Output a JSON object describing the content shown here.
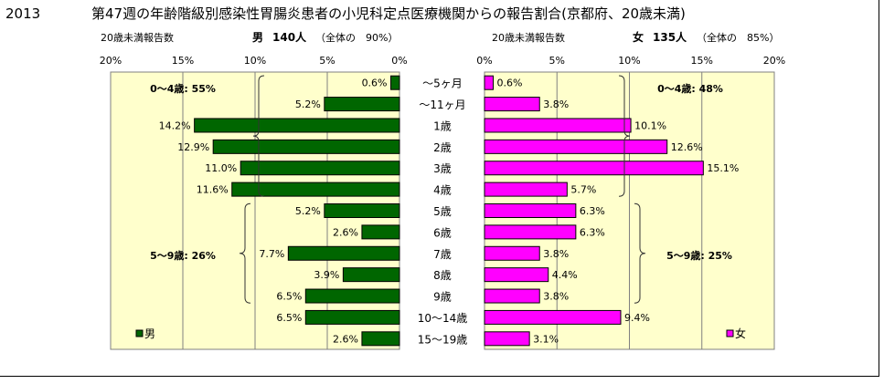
{
  "header": {
    "year": "2013",
    "title": "第47週の年齢階級別感染性胃腸炎患者の小児科定点医療機関からの報告割合(京都府、20歳未満)"
  },
  "colors": {
    "male": "#006600",
    "female": "#ff00ff",
    "plot_bg": "#ffffcc",
    "grid": "#808080"
  },
  "chart_data": [
    {
      "type": "bar",
      "orientation": "horizontal",
      "direction": "right-to-left",
      "subtitle_left": "20歳未満報告数",
      "subtitle_sex": "男",
      "subtitle_count": "140人",
      "subtitle_share": "（全体の　90%）",
      "xlim": [
        0,
        20
      ],
      "ticks": [
        "20%",
        "15%",
        "10%",
        "5%",
        "0%"
      ],
      "legend": "男",
      "legend_position": "bottom-left",
      "categories": [
        "～5ヶ月",
        "～11ヶ月",
        "1歳",
        "2歳",
        "3歳",
        "4歳",
        "5歳",
        "6歳",
        "7歳",
        "8歳",
        "9歳",
        "10～14歳",
        "15～19歳"
      ],
      "values": [
        0.6,
        5.2,
        14.2,
        12.9,
        11.0,
        11.6,
        5.2,
        2.6,
        7.7,
        3.9,
        6.5,
        6.5,
        2.6
      ],
      "labels": [
        "0.6%",
        "5.2%",
        "14.2%",
        "12.9%",
        "11.0%",
        "11.6%",
        "5.2%",
        "2.6%",
        "7.7%",
        "3.9%",
        "6.5%",
        "6.5%",
        "2.6%"
      ],
      "annotations": [
        {
          "text": "0～4歳: 55%",
          "from": 0,
          "to": 5
        },
        {
          "text": "5～9歳: 26%",
          "from": 6,
          "to": 10
        }
      ]
    },
    {
      "type": "bar",
      "orientation": "horizontal",
      "direction": "left-to-right",
      "subtitle_left": "20歳未満報告数",
      "subtitle_sex": "女",
      "subtitle_count": "135人",
      "subtitle_share": "（全体の　85%）",
      "xlim": [
        0,
        20
      ],
      "ticks": [
        "0%",
        "5%",
        "10%",
        "15%",
        "20%"
      ],
      "legend": "女",
      "legend_position": "bottom-right",
      "categories": [
        "～5ヶ月",
        "～11ヶ月",
        "1歳",
        "2歳",
        "3歳",
        "4歳",
        "5歳",
        "6歳",
        "7歳",
        "8歳",
        "9歳",
        "10～14歳",
        "15～19歳"
      ],
      "values": [
        0.6,
        3.8,
        10.1,
        12.6,
        15.1,
        5.7,
        6.3,
        6.3,
        3.8,
        4.4,
        3.8,
        9.4,
        3.1
      ],
      "labels": [
        "0.6%",
        "3.8%",
        "10.1%",
        "12.6%",
        "15.1%",
        "5.7%",
        "6.3%",
        "6.3%",
        "3.8%",
        "4.4%",
        "3.8%",
        "9.4%",
        "3.1%"
      ],
      "annotations": [
        {
          "text": "0～4歳: 48%",
          "from": 0,
          "to": 5
        },
        {
          "text": "5～9歳: 25%",
          "from": 6,
          "to": 10
        }
      ]
    }
  ]
}
